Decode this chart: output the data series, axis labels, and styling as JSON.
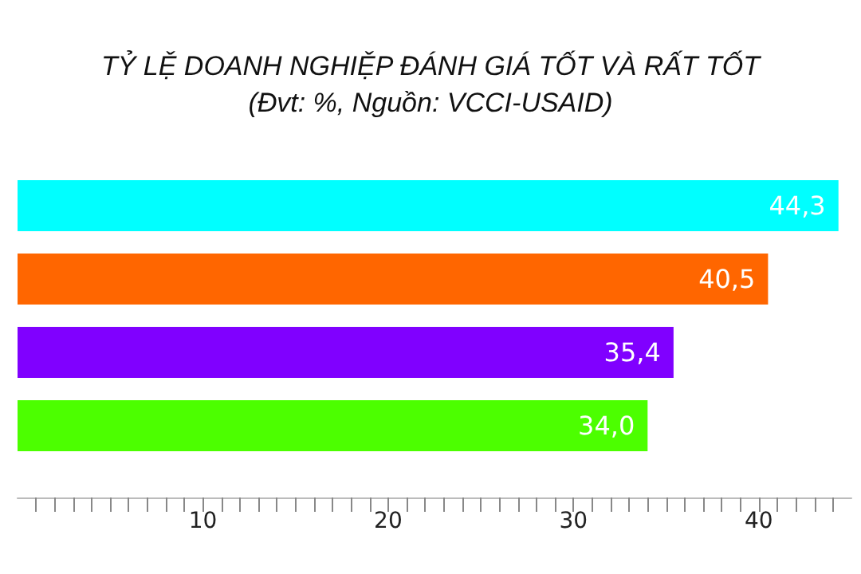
{
  "chart_data": {
    "type": "bar",
    "orientation": "horizontal",
    "title": "TỶ LỆ DOANH NGHIỆP ĐÁNH GIÁ TỐT VÀ RẤT TỐT",
    "subtitle": "(Đvt: %, Nguồn: VCCI-USAID)",
    "categories": [
      null,
      null,
      null,
      null
    ],
    "values": [
      44.3,
      40.5,
      35.4,
      34.0
    ],
    "colors": [
      "#00ffff",
      "#ff6600",
      "#8000ff",
      "#4cff00"
    ],
    "value_labels": [
      "44,3",
      "40,5",
      "35,4",
      "34,0"
    ],
    "xlim": [
      0,
      45
    ],
    "xticks": [
      10,
      20,
      30,
      40
    ],
    "grid": false
  }
}
